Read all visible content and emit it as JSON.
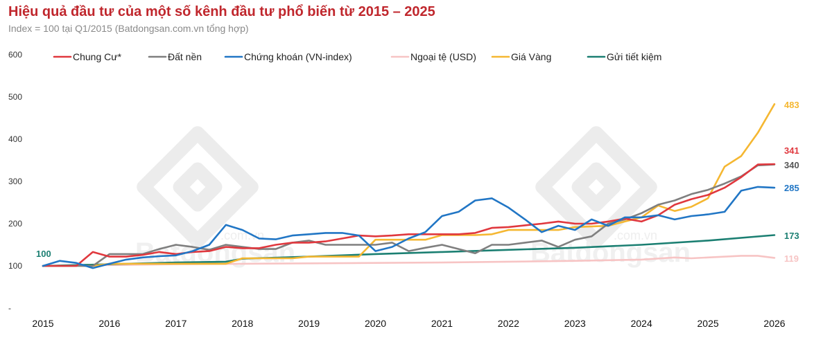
{
  "header": {
    "title": "Hiệu quả đầu tư của một số kênh đầu tư phổ biến từ 2015 – 2025",
    "subtitle": "Index = 100 tại Q1/2015 (Batdongsan.com.vn tổng hợp)"
  },
  "watermark": {
    "brand": "Batdongsan",
    "domain": ".com.vn"
  },
  "chart_data": {
    "type": "line",
    "title": "Hiệu quả đầu tư của một số kênh đầu tư phổ biến từ 2015 – 2025",
    "subtitle": "Index = 100 tại Q1/2015 (Batdongsan.com.vn tổng hợp)",
    "xlim": [
      2015,
      2026
    ],
    "ylim": [
      0,
      600
    ],
    "x_ticks": [
      "2015",
      "2016",
      "2017",
      "2018",
      "2019",
      "2020",
      "2021",
      "2022",
      "2023",
      "2024",
      "2025",
      "2026"
    ],
    "y_ticks": [
      "-",
      "100",
      "200",
      "300",
      "400",
      "500",
      "600"
    ],
    "legend_position": "top",
    "start_label": "100",
    "series": [
      {
        "name": "Chung Cư*",
        "color": "#e0383e",
        "end_label": "341",
        "points": [
          [
            2015,
            100
          ],
          [
            2015.5,
            100
          ],
          [
            2015.75,
            133
          ],
          [
            2016,
            122
          ],
          [
            2016.25,
            122
          ],
          [
            2016.5,
            126
          ],
          [
            2016.75,
            133
          ],
          [
            2017,
            128
          ],
          [
            2017.25,
            133
          ],
          [
            2017.5,
            135
          ],
          [
            2017.75,
            145
          ],
          [
            2018,
            142
          ],
          [
            2018.25,
            142
          ],
          [
            2018.5,
            150
          ],
          [
            2018.75,
            155
          ],
          [
            2019,
            155
          ],
          [
            2019.25,
            158
          ],
          [
            2019.5,
            165
          ],
          [
            2019.75,
            172
          ],
          [
            2020,
            170
          ],
          [
            2020.25,
            172
          ],
          [
            2020.5,
            175
          ],
          [
            2020.75,
            175
          ],
          [
            2021,
            175
          ],
          [
            2021.25,
            175
          ],
          [
            2021.5,
            178
          ],
          [
            2021.75,
            190
          ],
          [
            2022,
            192
          ],
          [
            2022.25,
            196
          ],
          [
            2022.5,
            200
          ],
          [
            2022.75,
            205
          ],
          [
            2023,
            200
          ],
          [
            2023.25,
            200
          ],
          [
            2023.5,
            205
          ],
          [
            2023.75,
            212
          ],
          [
            2024,
            205
          ],
          [
            2024.25,
            220
          ],
          [
            2024.5,
            245
          ],
          [
            2024.75,
            258
          ],
          [
            2025,
            268
          ],
          [
            2025.25,
            285
          ],
          [
            2025.5,
            310
          ],
          [
            2025.75,
            340
          ],
          [
            2026,
            341
          ]
        ]
      },
      {
        "name": "Đất nền",
        "color": "#7f7f7f",
        "end_label": "340",
        "points": [
          [
            2015,
            100
          ],
          [
            2015.75,
            100
          ],
          [
            2016,
            128
          ],
          [
            2016.25,
            128
          ],
          [
            2016.5,
            128
          ],
          [
            2016.75,
            140
          ],
          [
            2017,
            150
          ],
          [
            2017.25,
            145
          ],
          [
            2017.5,
            138
          ],
          [
            2017.75,
            150
          ],
          [
            2018,
            145
          ],
          [
            2018.25,
            140
          ],
          [
            2018.5,
            140
          ],
          [
            2018.75,
            155
          ],
          [
            2019,
            160
          ],
          [
            2019.25,
            150
          ],
          [
            2019.5,
            150
          ],
          [
            2019.75,
            150
          ],
          [
            2020,
            150
          ],
          [
            2020.25,
            155
          ],
          [
            2020.5,
            135
          ],
          [
            2020.75,
            143
          ],
          [
            2021,
            150
          ],
          [
            2021.25,
            140
          ],
          [
            2021.5,
            130
          ],
          [
            2021.75,
            150
          ],
          [
            2022,
            150
          ],
          [
            2022.25,
            155
          ],
          [
            2022.5,
            160
          ],
          [
            2022.75,
            145
          ],
          [
            2023,
            162
          ],
          [
            2023.25,
            170
          ],
          [
            2023.5,
            200
          ],
          [
            2023.75,
            210
          ],
          [
            2024,
            225
          ],
          [
            2024.25,
            245
          ],
          [
            2024.5,
            255
          ],
          [
            2024.75,
            270
          ],
          [
            2025,
            280
          ],
          [
            2025.25,
            295
          ],
          [
            2025.5,
            312
          ],
          [
            2025.75,
            338
          ],
          [
            2026,
            340
          ]
        ]
      },
      {
        "name": "Chứng khoán (VN-index)",
        "color": "#2176c5",
        "end_label": "285",
        "points": [
          [
            2015,
            100
          ],
          [
            2015.25,
            112
          ],
          [
            2015.5,
            107
          ],
          [
            2015.75,
            95
          ],
          [
            2016,
            105
          ],
          [
            2016.25,
            115
          ],
          [
            2016.5,
            120
          ],
          [
            2016.75,
            123
          ],
          [
            2017,
            125
          ],
          [
            2017.25,
            135
          ],
          [
            2017.5,
            150
          ],
          [
            2017.75,
            197
          ],
          [
            2018,
            185
          ],
          [
            2018.25,
            165
          ],
          [
            2018.5,
            163
          ],
          [
            2018.75,
            172
          ],
          [
            2019,
            175
          ],
          [
            2019.25,
            178
          ],
          [
            2019.5,
            178
          ],
          [
            2019.75,
            172
          ],
          [
            2020,
            135
          ],
          [
            2020.25,
            145
          ],
          [
            2020.5,
            165
          ],
          [
            2020.75,
            180
          ],
          [
            2021,
            218
          ],
          [
            2021.25,
            228
          ],
          [
            2021.5,
            255
          ],
          [
            2021.75,
            260
          ],
          [
            2022,
            238
          ],
          [
            2022.25,
            210
          ],
          [
            2022.5,
            180
          ],
          [
            2022.75,
            195
          ],
          [
            2023,
            185
          ],
          [
            2023.25,
            210
          ],
          [
            2023.5,
            195
          ],
          [
            2023.75,
            215
          ],
          [
            2024,
            215
          ],
          [
            2024.25,
            220
          ],
          [
            2024.5,
            210
          ],
          [
            2024.75,
            218
          ],
          [
            2025,
            222
          ],
          [
            2025.25,
            228
          ],
          [
            2025.5,
            278
          ],
          [
            2025.75,
            287
          ],
          [
            2026,
            285
          ]
        ]
      },
      {
        "name": "Ngoại tệ (USD)",
        "color": "#f7c4c4",
        "end_label": "119",
        "points": [
          [
            2015,
            100
          ],
          [
            2016,
            102
          ],
          [
            2017,
            104
          ],
          [
            2018,
            105
          ],
          [
            2019,
            106
          ],
          [
            2020,
            107
          ],
          [
            2021,
            108
          ],
          [
            2022,
            110
          ],
          [
            2023,
            112
          ],
          [
            2024,
            115
          ],
          [
            2024.5,
            120
          ],
          [
            2024.75,
            118
          ],
          [
            2025,
            120
          ],
          [
            2025.5,
            124
          ],
          [
            2025.75,
            124
          ],
          [
            2026,
            119
          ]
        ]
      },
      {
        "name": "Giá Vàng",
        "color": "#f5b731",
        "end_label": "483",
        "points": [
          [
            2015,
            100
          ],
          [
            2015.75,
            100
          ],
          [
            2016,
            105
          ],
          [
            2016.5,
            105
          ],
          [
            2017,
            105
          ],
          [
            2017.75,
            105
          ],
          [
            2018,
            118
          ],
          [
            2018.5,
            118
          ],
          [
            2018.75,
            118
          ],
          [
            2019,
            122
          ],
          [
            2019.5,
            122
          ],
          [
            2019.75,
            122
          ],
          [
            2020,
            162
          ],
          [
            2020.5,
            162
          ],
          [
            2020.75,
            162
          ],
          [
            2021,
            173
          ],
          [
            2021.5,
            173
          ],
          [
            2021.75,
            175
          ],
          [
            2022,
            185
          ],
          [
            2022.5,
            185
          ],
          [
            2022.75,
            185
          ],
          [
            2023,
            192
          ],
          [
            2023.5,
            195
          ],
          [
            2023.75,
            205
          ],
          [
            2024,
            215
          ],
          [
            2024.25,
            243
          ],
          [
            2024.5,
            230
          ],
          [
            2024.75,
            240
          ],
          [
            2025,
            260
          ],
          [
            2025.25,
            335
          ],
          [
            2025.5,
            360
          ],
          [
            2025.75,
            415
          ],
          [
            2026,
            483
          ]
        ]
      },
      {
        "name": "Gửi tiết kiệm",
        "color": "#1b7f72",
        "end_label": "173",
        "points": [
          [
            2015,
            100
          ],
          [
            2016,
            104
          ],
          [
            2017,
            108
          ],
          [
            2017.75,
            110
          ],
          [
            2018,
            117
          ],
          [
            2019,
            122
          ],
          [
            2020,
            128
          ],
          [
            2021,
            133
          ],
          [
            2022,
            138
          ],
          [
            2023,
            143
          ],
          [
            2024,
            150
          ],
          [
            2025,
            160
          ],
          [
            2026,
            173
          ]
        ]
      }
    ]
  }
}
